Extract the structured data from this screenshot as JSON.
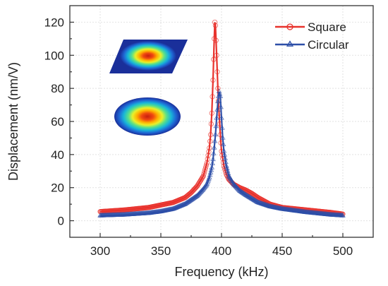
{
  "chart_data": {
    "type": "line",
    "title": "",
    "xlabel": "Frequency (kHz)",
    "ylabel": "Displacement (nm/V)",
    "xlim": [
      275,
      525
    ],
    "ylim": [
      -10,
      130
    ],
    "xticks": [
      300,
      350,
      400,
      450,
      500
    ],
    "yticks": [
      0,
      20,
      40,
      60,
      80,
      100,
      120
    ],
    "grid": true,
    "legend_position": "top-right",
    "series": [
      {
        "name": "Square",
        "color": "#e8322c",
        "marker": "circle",
        "peak": {
          "x": 394.5,
          "y": 120
        },
        "x": [
          300,
          320,
          340,
          350,
          360,
          370,
          375,
          380,
          385,
          388,
          390,
          391,
          392,
          393,
          394,
          394.5,
          395,
          396,
          397,
          398,
          399,
          400,
          402,
          404,
          406,
          410,
          415,
          420,
          425,
          430,
          440,
          450,
          470,
          490,
          500
        ],
        "y": [
          5.5,
          6.5,
          8,
          9.5,
          11,
          14,
          17,
          21,
          27,
          35,
          44,
          52,
          65,
          85,
          110,
          120,
          118,
          100,
          80,
          65,
          52,
          42,
          33,
          28,
          25,
          22,
          20,
          18.5,
          16.5,
          14,
          10,
          8,
          6.5,
          5,
          4
        ]
      },
      {
        "name": "Circular",
        "color": "#2d4fa8",
        "marker": "triangle",
        "peak": {
          "x": 398,
          "y": 78
        },
        "x": [
          300,
          320,
          340,
          350,
          360,
          370,
          375,
          380,
          385,
          388,
          390,
          392,
          393,
          394,
          395,
          396,
          397,
          398,
          399,
          400,
          401,
          402,
          404,
          406,
          410,
          415,
          420,
          430,
          440,
          450,
          470,
          490,
          500
        ],
        "y": [
          3,
          3.5,
          4.5,
          5.5,
          7,
          10,
          12.5,
          15,
          19,
          22,
          26,
          32,
          37,
          44,
          52,
          62,
          72,
          78,
          75,
          62,
          50,
          42,
          33,
          27,
          22,
          18,
          15.5,
          11,
          8.5,
          7,
          5,
          3.5,
          3
        ]
      }
    ],
    "inset_images": [
      "square-plate-mode-shape",
      "circular-plate-mode-shape"
    ]
  }
}
